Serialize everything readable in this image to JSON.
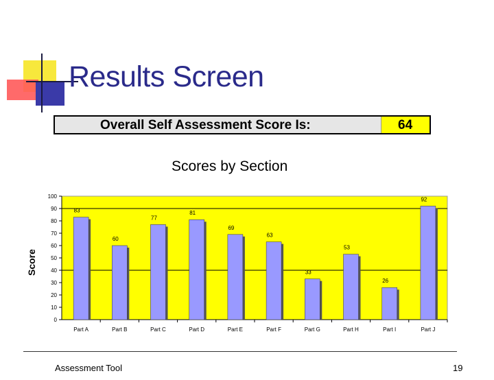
{
  "slide": {
    "title": "Results Screen",
    "footer_left": "Assessment Tool",
    "page_number": "19"
  },
  "overall": {
    "label": "Overall Self Assessment Score Is:",
    "value": "64"
  },
  "colors": {
    "plot_background": "#ffff00",
    "bar_fill": "#9999ff",
    "bar_shadow": "#555555",
    "title_blue": "#2a2a8a"
  },
  "chart_data": {
    "type": "bar",
    "title": "Scores by Section",
    "xlabel": "",
    "ylabel": "Score",
    "categories": [
      "Part A",
      "Part B",
      "Part C",
      "Part D",
      "Part E",
      "Part F",
      "Part G",
      "Part H",
      "Part I",
      "Part J"
    ],
    "values": [
      83,
      60,
      77,
      81,
      69,
      63,
      33,
      53,
      26,
      92
    ],
    "ylim": [
      0,
      100
    ],
    "yticks": [
      0,
      10,
      20,
      30,
      40,
      50,
      60,
      70,
      80,
      90,
      100
    ],
    "reference_lines": [
      90,
      40
    ],
    "grid": false,
    "legend": "none"
  }
}
